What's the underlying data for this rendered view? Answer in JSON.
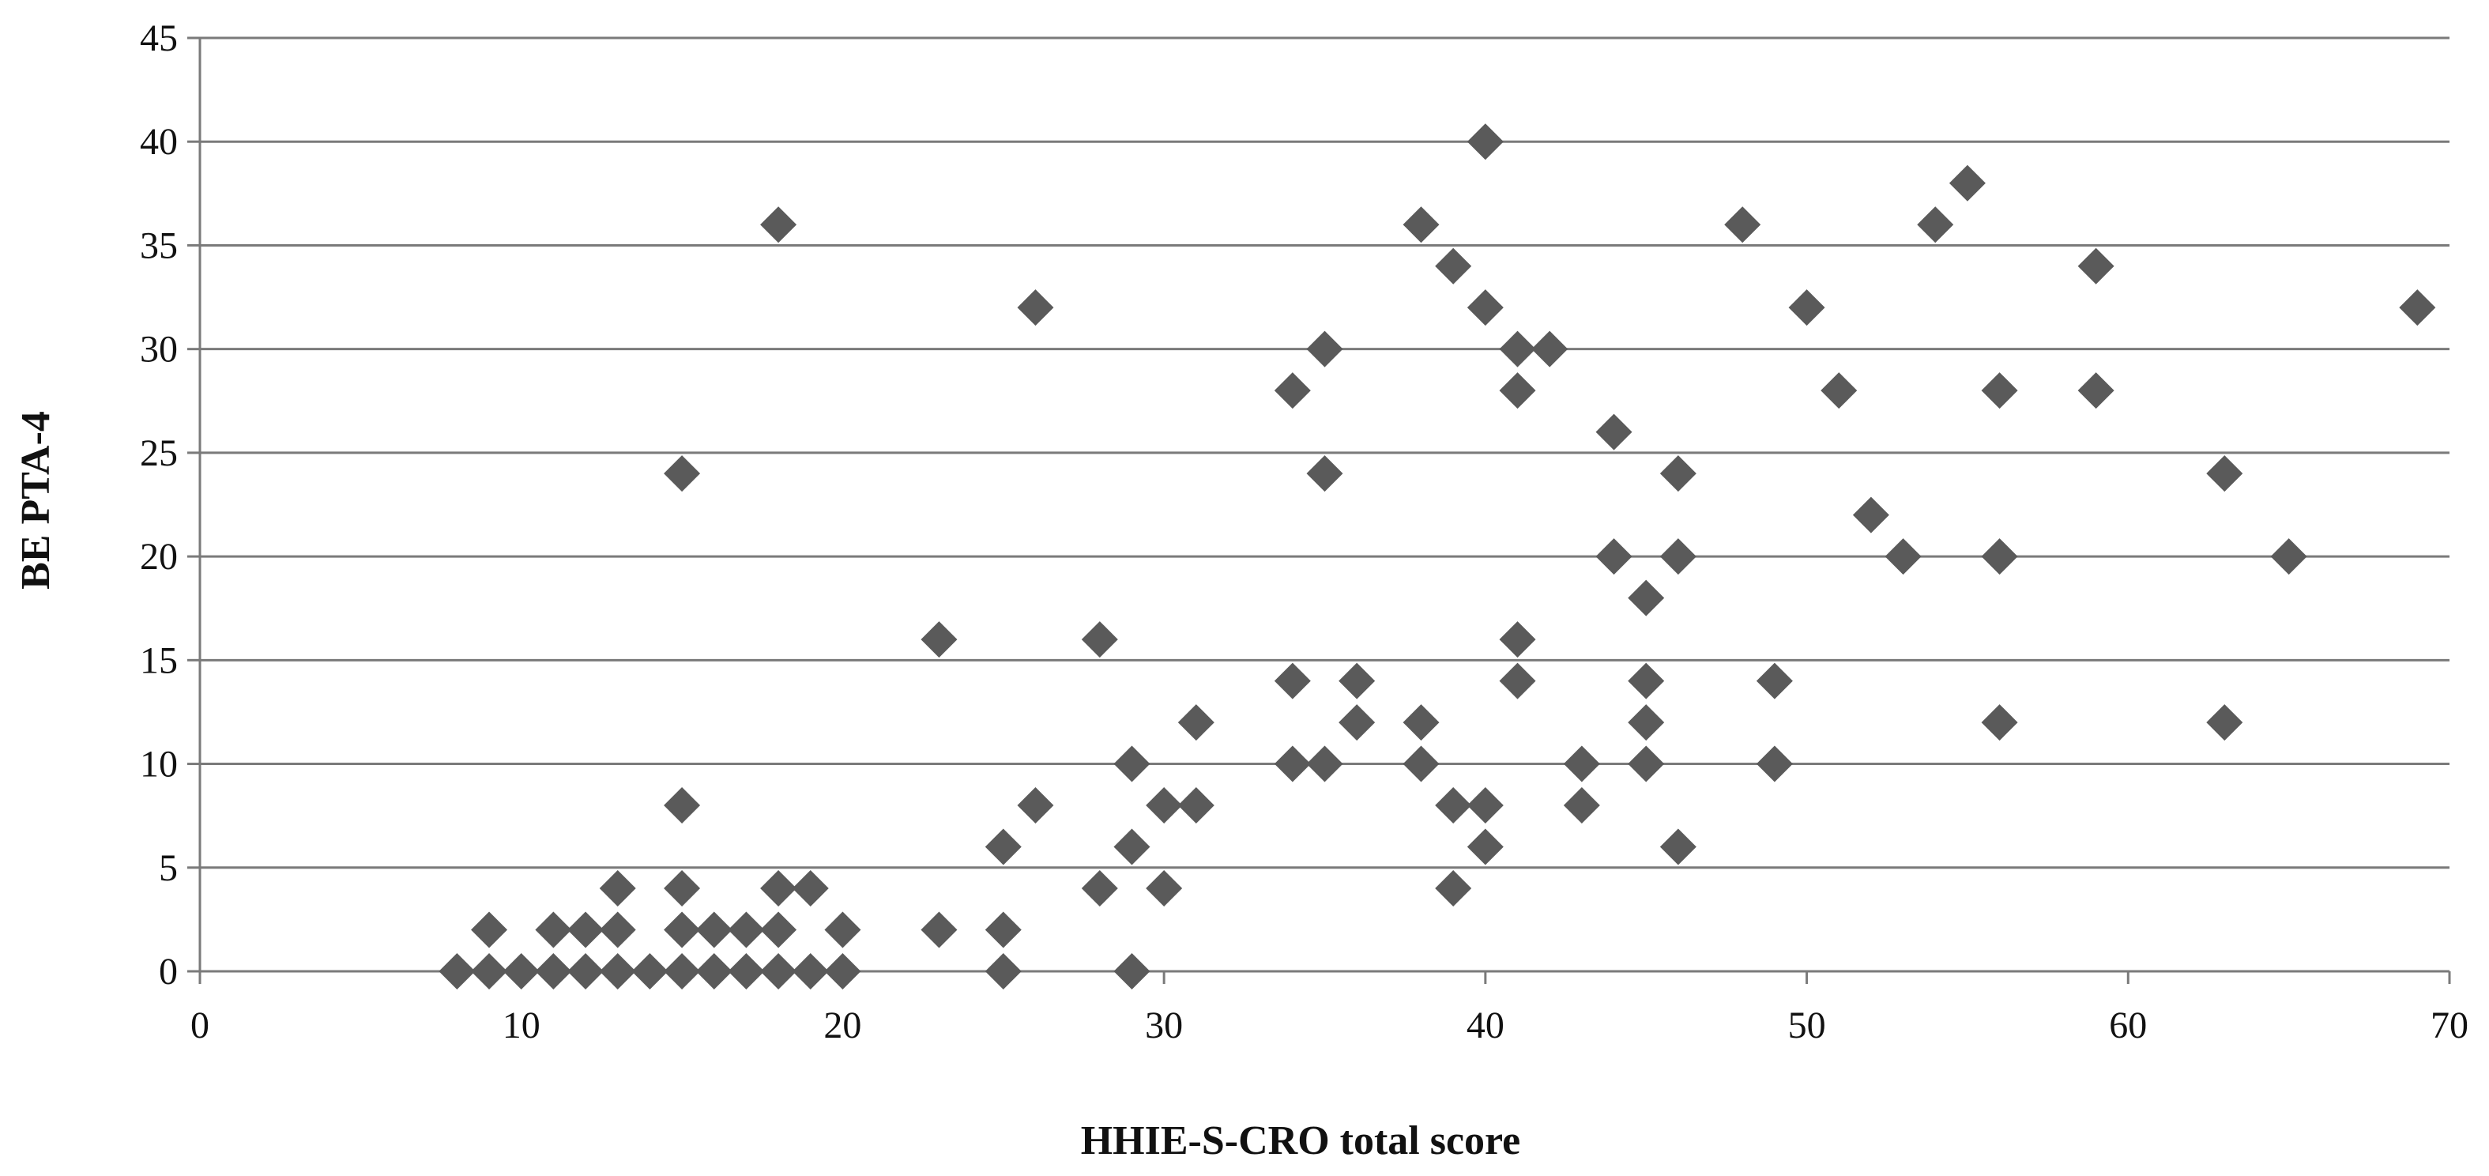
{
  "chart_data": {
    "type": "scatter",
    "title": "",
    "xlabel": "HHIE-S-CRO total score",
    "ylabel": "BE PTA-4",
    "xlim": [
      0,
      70
    ],
    "ylim": [
      0,
      45
    ],
    "xticks": [
      0,
      10,
      20,
      30,
      40,
      50,
      60,
      70
    ],
    "yticks": [
      0,
      5,
      10,
      15,
      20,
      25,
      30,
      35,
      40,
      45
    ],
    "grid": "horizontal",
    "legend": "none",
    "marker": "diamond",
    "marker_color": "#5a5a5a",
    "points": [
      [
        8,
        0
      ],
      [
        9,
        0
      ],
      [
        9,
        2
      ],
      [
        10,
        0
      ],
      [
        11,
        0
      ],
      [
        11,
        2
      ],
      [
        12,
        0
      ],
      [
        12,
        2
      ],
      [
        13,
        0
      ],
      [
        13,
        2
      ],
      [
        13,
        4
      ],
      [
        14,
        0
      ],
      [
        15,
        0
      ],
      [
        15,
        2
      ],
      [
        15,
        4
      ],
      [
        15,
        8
      ],
      [
        15,
        24
      ],
      [
        16,
        0
      ],
      [
        16,
        2
      ],
      [
        17,
        0
      ],
      [
        17,
        2
      ],
      [
        18,
        0
      ],
      [
        18,
        2
      ],
      [
        18,
        4
      ],
      [
        18,
        36
      ],
      [
        19,
        0
      ],
      [
        19,
        4
      ],
      [
        20,
        0
      ],
      [
        20,
        2
      ],
      [
        23,
        2
      ],
      [
        23,
        16
      ],
      [
        25,
        0
      ],
      [
        25,
        2
      ],
      [
        25,
        6
      ],
      [
        26,
        8
      ],
      [
        26,
        32
      ],
      [
        28,
        4
      ],
      [
        28,
        16
      ],
      [
        29,
        0
      ],
      [
        29,
        6
      ],
      [
        29,
        10
      ],
      [
        30,
        4
      ],
      [
        30,
        8
      ],
      [
        31,
        8
      ],
      [
        31,
        12
      ],
      [
        34,
        10
      ],
      [
        34,
        14
      ],
      [
        34,
        28
      ],
      [
        35,
        10
      ],
      [
        35,
        24
      ],
      [
        35,
        30
      ],
      [
        36,
        12
      ],
      [
        36,
        14
      ],
      [
        38,
        10
      ],
      [
        38,
        12
      ],
      [
        38,
        36
      ],
      [
        39,
        4
      ],
      [
        39,
        8
      ],
      [
        39,
        34
      ],
      [
        40,
        6
      ],
      [
        40,
        8
      ],
      [
        40,
        32
      ],
      [
        40,
        40
      ],
      [
        41,
        14
      ],
      [
        41,
        16
      ],
      [
        41,
        28
      ],
      [
        41,
        30
      ],
      [
        42,
        30
      ],
      [
        43,
        8
      ],
      [
        43,
        10
      ],
      [
        44,
        20
      ],
      [
        44,
        26
      ],
      [
        45,
        10
      ],
      [
        45,
        12
      ],
      [
        45,
        14
      ],
      [
        45,
        18
      ],
      [
        46,
        6
      ],
      [
        46,
        20
      ],
      [
        46,
        24
      ],
      [
        48,
        36
      ],
      [
        49,
        10
      ],
      [
        49,
        14
      ],
      [
        50,
        32
      ],
      [
        51,
        28
      ],
      [
        52,
        22
      ],
      [
        53,
        20
      ],
      [
        54,
        36
      ],
      [
        55,
        38
      ],
      [
        56,
        12
      ],
      [
        56,
        20
      ],
      [
        56,
        28
      ],
      [
        59,
        28
      ],
      [
        59,
        34
      ],
      [
        63,
        12
      ],
      [
        63,
        24
      ],
      [
        65,
        20
      ],
      [
        69,
        32
      ]
    ]
  }
}
